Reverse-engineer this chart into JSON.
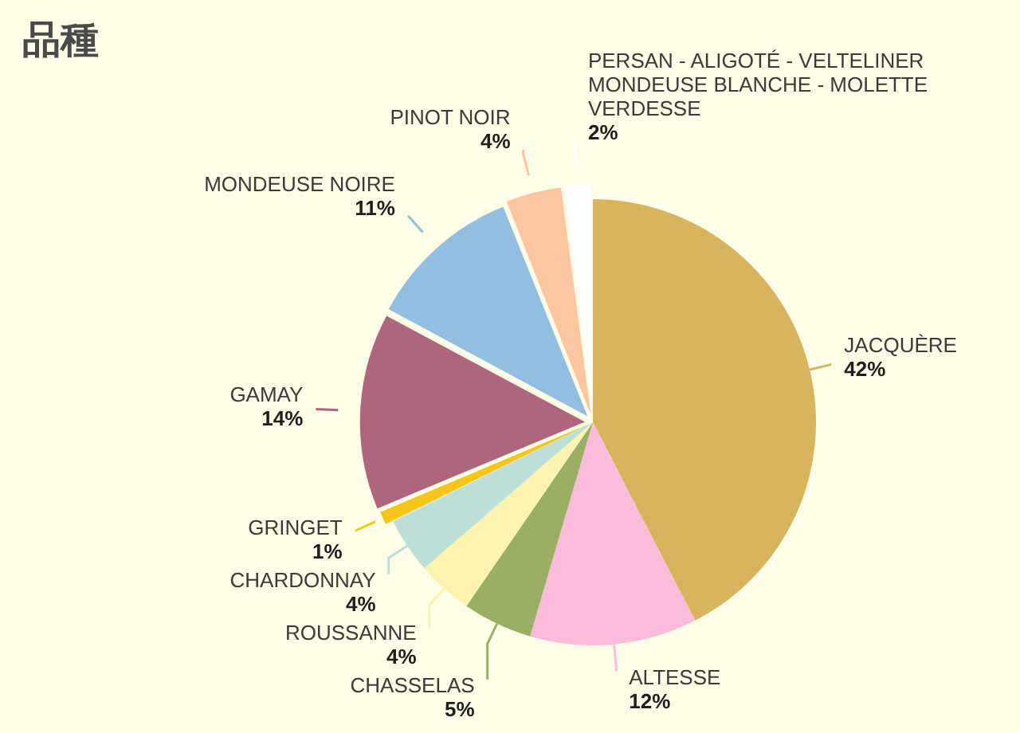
{
  "chart_data": {
    "type": "pie",
    "title": "品種",
    "categories": [
      "JACQUÈRE",
      "ALTESSE",
      "CHASSELAS",
      "ROUSSANNE",
      "CHARDONNAY",
      "GRINGET",
      "GAMAY",
      "MONDEUSE NOIRE",
      "PINOT NOIR",
      "PERSAN - ALIGOTÉ - VELTELINER MONDEUSE BLANCHE - MOLETTE VERDESSE"
    ],
    "values": [
      42,
      12,
      5,
      4,
      4,
      1,
      14,
      11,
      4,
      2
    ],
    "value_labels": [
      "42%",
      "12%",
      "5%",
      "4%",
      "4%",
      "1%",
      "14%",
      "11%",
      "4%",
      "2%"
    ],
    "colors": [
      "#d9b45f",
      "#fbbcd9",
      "#9aae66",
      "#fdf3b0",
      "#bfe0d8",
      "#f5c518",
      "#ad667c",
      "#92bfe0",
      "#fcc7a0",
      "#ffffff"
    ]
  }
}
